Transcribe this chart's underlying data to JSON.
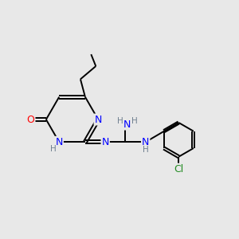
{
  "bg_color": "#e8e8e8",
  "bond_color": "#000000",
  "atom_colors": {
    "N": "#0000ff",
    "O": "#ff0000",
    "C": "#000000",
    "Cl": "#228b22",
    "H": "#708090"
  },
  "figsize": [
    3.0,
    3.0
  ],
  "dpi": 100
}
